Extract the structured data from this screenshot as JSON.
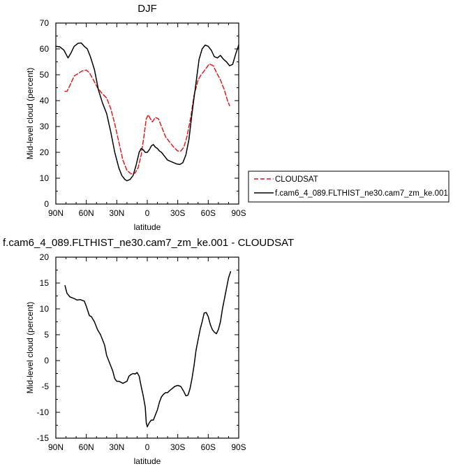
{
  "chart_data": [
    {
      "type": "line",
      "title": "DJF",
      "xlabel": "latitude",
      "ylabel": "Mid-level cloud (percent)",
      "xlim": [
        90,
        -90
      ],
      "ylim": [
        0,
        70
      ],
      "x_ticks": [
        90,
        60,
        30,
        0,
        -30,
        -60,
        -90
      ],
      "x_tick_labels": [
        "90N",
        "60N",
        "30N",
        "0",
        "30S",
        "60S",
        "90S"
      ],
      "y_ticks": [
        0,
        10,
        20,
        30,
        40,
        50,
        60,
        70
      ],
      "y_tick_labels": [
        "0",
        "10",
        "20",
        "30",
        "40",
        "50",
        "60",
        "70"
      ],
      "grid": false,
      "legend": {
        "placement": "right",
        "entries": [
          "CLOUDSAT",
          "f.cam6_4_089.FLTHIST_ne30.cam7_zm_ke.001"
        ]
      },
      "series": [
        {
          "name": "CLOUDSAT",
          "color": "#e41a1c",
          "dash": "dashed",
          "x": [
            81,
            79,
            76,
            72,
            68,
            64,
            60,
            57,
            53,
            49,
            45,
            40,
            36,
            32,
            28,
            24,
            20,
            16,
            12,
            9,
            6,
            3,
            1,
            -1,
            -3,
            -5,
            -8,
            -11,
            -14,
            -18,
            -22,
            -26,
            -30,
            -33,
            -36,
            -39,
            -43,
            -46,
            -50,
            -53,
            -57,
            -61,
            -65,
            -68,
            -72,
            -76,
            -79,
            -81
          ],
          "y": [
            43.6,
            43.6,
            46,
            49.5,
            50.5,
            51.5,
            51.8,
            50.8,
            48,
            45,
            43,
            41,
            37,
            31,
            24,
            17,
            13,
            11.7,
            12,
            14,
            19,
            27,
            33,
            34.5,
            33,
            31.8,
            33.5,
            33,
            30,
            26,
            24,
            22,
            20.5,
            20.5,
            22,
            26,
            34,
            42,
            48,
            50,
            52,
            54.2,
            53.5,
            51,
            48,
            44,
            40,
            38
          ]
        },
        {
          "name": "f.cam6_4_089.FLTHIST_ne30.cam7_zm_ke.001",
          "color": "#000000",
          "dash": "solid",
          "x": [
            90,
            86,
            82,
            78,
            75,
            72,
            68,
            65,
            62,
            59,
            56,
            52,
            48,
            44,
            40,
            36,
            32,
            28,
            25,
            22,
            20,
            17,
            14,
            11,
            8,
            6,
            4,
            2,
            0,
            -2,
            -4,
            -6,
            -8,
            -10,
            -12,
            -14,
            -17,
            -20,
            -23,
            -26,
            -29,
            -32,
            -35,
            -38,
            -41,
            -44,
            -48,
            -51,
            -54,
            -57,
            -60,
            -63,
            -66,
            -69,
            -72,
            -75,
            -78,
            -81,
            -84,
            -87,
            -90
          ],
          "y": [
            61,
            60.8,
            59.5,
            56.5,
            58.5,
            61,
            62.2,
            62.3,
            61,
            60,
            57,
            52,
            44,
            39,
            35,
            28,
            20,
            14,
            11,
            9.5,
            9,
            9.5,
            11,
            15,
            20,
            21.5,
            21,
            20,
            20,
            21,
            22.5,
            23,
            22,
            21.5,
            20.5,
            20,
            18.5,
            17,
            16.5,
            16,
            15.5,
            15.3,
            16,
            19,
            25,
            35,
            47,
            56,
            60,
            61.5,
            61,
            59.5,
            57,
            56.5,
            57.5,
            56,
            55,
            53.5,
            54,
            58,
            61.5
          ]
        }
      ]
    },
    {
      "type": "line",
      "title": "f.cam6_4_089.FLTHIST_ne30.cam7_zm_ke.001 - CLOUDSAT",
      "xlabel": "latitude",
      "ylabel": "Mid-level cloud (percent)",
      "xlim": [
        90,
        -90
      ],
      "ylim": [
        -15,
        20
      ],
      "x_ticks": [
        90,
        60,
        30,
        0,
        -30,
        -60,
        -90
      ],
      "x_tick_labels": [
        "90N",
        "60N",
        "30N",
        "0",
        "30S",
        "60S",
        "90S"
      ],
      "y_ticks": [
        -15,
        -10,
        -5,
        0,
        5,
        10,
        15,
        20
      ],
      "y_tick_labels": [
        "-15",
        "-10",
        "-5",
        "0",
        "5",
        "10",
        "15",
        "20"
      ],
      "grid": false,
      "series": [
        {
          "color": "#000000",
          "dash": "solid",
          "x": [
            81,
            79,
            76,
            72,
            69,
            66,
            62,
            60,
            57,
            55,
            52,
            49,
            46,
            44,
            42,
            40,
            38,
            36,
            34,
            32,
            30,
            28,
            26,
            24,
            22,
            20,
            18,
            16,
            14,
            12,
            10,
            8,
            6,
            4,
            2,
            1,
            0,
            -2,
            -4,
            -6,
            -8,
            -10,
            -12,
            -14,
            -16,
            -18,
            -20,
            -22,
            -24,
            -27,
            -30,
            -33,
            -36,
            -38,
            -40,
            -42,
            -44,
            -46,
            -48,
            -50,
            -52,
            -54,
            -56,
            -58,
            -60,
            -62,
            -64,
            -66,
            -68,
            -70,
            -72,
            -74,
            -76,
            -78,
            -80,
            -82
          ],
          "y": [
            14.5,
            13,
            12.3,
            12,
            11.7,
            11.8,
            11.5,
            10.5,
            8.7,
            8.5,
            7.5,
            6,
            5,
            4,
            3,
            1,
            0,
            -1,
            -2,
            -3.5,
            -4,
            -4,
            -4.2,
            -4.4,
            -4.2,
            -4,
            -3,
            -2.7,
            -2.5,
            -2.6,
            -2.3,
            -3,
            -5,
            -6.8,
            -9,
            -12,
            -12.8,
            -12,
            -11.5,
            -11.5,
            -10.5,
            -9.5,
            -8,
            -7,
            -6.5,
            -6.2,
            -6.2,
            -5.8,
            -5.5,
            -5,
            -4.8,
            -5,
            -6,
            -6.8,
            -6.7,
            -5.5,
            -3.5,
            -1,
            2,
            4,
            6,
            7.5,
            9.2,
            9.3,
            8.5,
            7,
            6,
            5.5,
            5.2,
            6,
            7.5,
            10,
            12,
            14,
            16,
            17.2
          ]
        }
      ]
    }
  ]
}
